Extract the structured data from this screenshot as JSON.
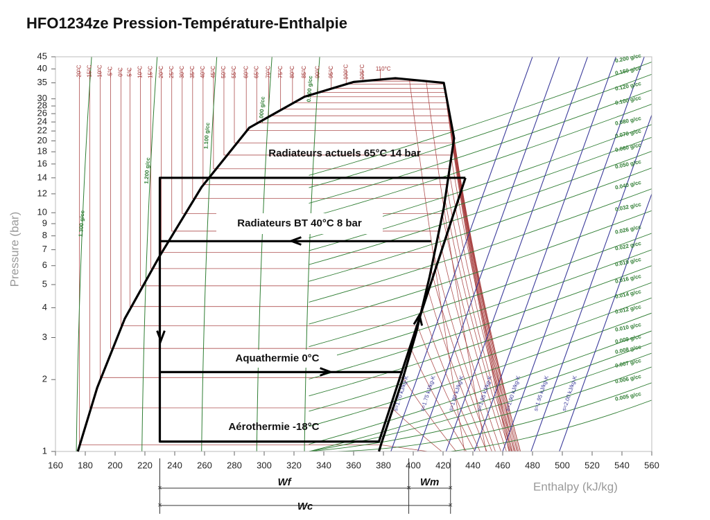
{
  "chart_data": {
    "type": "line",
    "title": "HFO1234ze  Pression-Température-Enthalpie",
    "x_label": "Enthalpy (kJ/kg)",
    "y_label": "Pressure (bar)",
    "xlim": [
      160,
      560
    ],
    "ylim": [
      1,
      45
    ],
    "log_y": true,
    "xticks": [
      160,
      180,
      200,
      220,
      240,
      260,
      280,
      300,
      320,
      340,
      360,
      380,
      400,
      420,
      440,
      460,
      480,
      500,
      520,
      540,
      560
    ],
    "yticks": [
      1,
      2,
      3,
      4,
      5,
      6,
      7,
      8,
      9,
      10,
      12,
      14,
      16,
      18,
      20,
      22,
      24,
      26,
      28,
      30,
      35,
      40,
      45
    ],
    "series": [
      {
        "color": "#000000",
        "x": [
          175,
          188,
          206.5,
          230,
          258,
          290,
          327,
          360,
          388,
          420.5,
          427.4,
          420.5,
          411,
          402,
          392.6,
          378.6,
          377
        ],
        "values": [
          1,
          1.85,
          3.6,
          6.6,
          12.8,
          22.7,
          30.6,
          35.3,
          36.6,
          35,
          20.5,
          10.5,
          5.4,
          3.15,
          1.98,
          1.08,
          1
        ]
      },
      {
        "color": "#000000",
        "x": [
          435,
          230,
          230,
          377,
          435
        ],
        "values": [
          14,
          14,
          1.1,
          1.1,
          14
        ]
      },
      {
        "color": "#000000",
        "x": [
          412,
          230
        ],
        "values": [
          7.6,
          7.6
        ]
      },
      {
        "color": "#000000",
        "x": [
          230,
          393
        ],
        "values": [
          2.15,
          2.15
        ]
      }
    ],
    "isotherms": {
      "color": "#a03030",
      "labels": [
        "-20°C",
        "-15°C",
        "-10°C",
        "-5°C",
        "0°C",
        "5°C",
        "10°C",
        "15°C",
        "20°C",
        "25°C",
        "30°C",
        "35°C",
        "40°C",
        "45°C",
        "50°C",
        "55°C",
        "60°C",
        "65°C",
        "70°C",
        "75°C",
        "80°C",
        "85°C",
        "90°C",
        "95°C",
        "100°C",
        "105°C",
        "110°C"
      ],
      "h": [
        176,
        183,
        190,
        197,
        204,
        210,
        217,
        224,
        231,
        238,
        245,
        252,
        259,
        266,
        273,
        280,
        288,
        295,
        303,
        311,
        319,
        327,
        336,
        345,
        355,
        366,
        378
      ]
    },
    "liquid_isochores": {
      "color": "#2e7d32",
      "labels": [
        "1.300 g/cc",
        "1.200 g/cc",
        "1.100 g/cc",
        "1.000 g/cc",
        "0.900 g/cc"
      ],
      "h": [
        174,
        218,
        258,
        295,
        327
      ]
    },
    "vapor_isochores": {
      "color": "#2e7d32",
      "labels": [
        "0.200 g/cc",
        "0.160 g/cc",
        "0.120 g/cc",
        "0.100 g/cc",
        "0.080 g/cc",
        "0.070 g/cc",
        "0.060 g/cc",
        "0.050 g/cc",
        "0.040 g/cc",
        "0.032 g/cc",
        "0.026 g/cc",
        "0.022 g/cc",
        "0.019 g/cc",
        "0.016 g/cc",
        "0.014 g/cc",
        "0.012 g/cc",
        "0.010 g/cc",
        "0.009 g/cc",
        "0.008 g/cc",
        "0.007 g/cc",
        "0.006 g/cc",
        "0.005 g/cc"
      ],
      "p": [
        42.8,
        38,
        32.7,
        28.5,
        23.4,
        20.7,
        18.1,
        15.4,
        12.6,
        10.2,
        8.2,
        7.0,
        6.0,
        5.1,
        4.4,
        3.8,
        3.2,
        2.85,
        2.58,
        2.26,
        1.94,
        1.64
      ]
    },
    "isentropes": {
      "color": "#3a3a9a",
      "labels": [
        "s=1.70 kJ/kg-K",
        "s=1.75 kJ/kg-K",
        "s=1.80 kJ/kg-K",
        "s=1.85 kJ/kg-K",
        "s=1.90 kJ/kg-K",
        "s=1.95 kJ/kg-K",
        "s=2.00 kJ/kg-K"
      ],
      "h": [
        385,
        403,
        422,
        441,
        460,
        479,
        498
      ]
    },
    "annotations": [
      "Radiateurs actuels 65°C  14 bar",
      "Radiateurs BT  40°C  8 bar",
      "Aquathermie  0°C",
      "Aérothermie  -18°C"
    ],
    "dimensions": [
      {
        "label": "Wf",
        "h": [
          230,
          397
        ]
      },
      {
        "label": "Wm",
        "h": [
          397,
          425
        ]
      },
      {
        "label": "Wc",
        "h": [
          230,
          425
        ]
      }
    ]
  }
}
